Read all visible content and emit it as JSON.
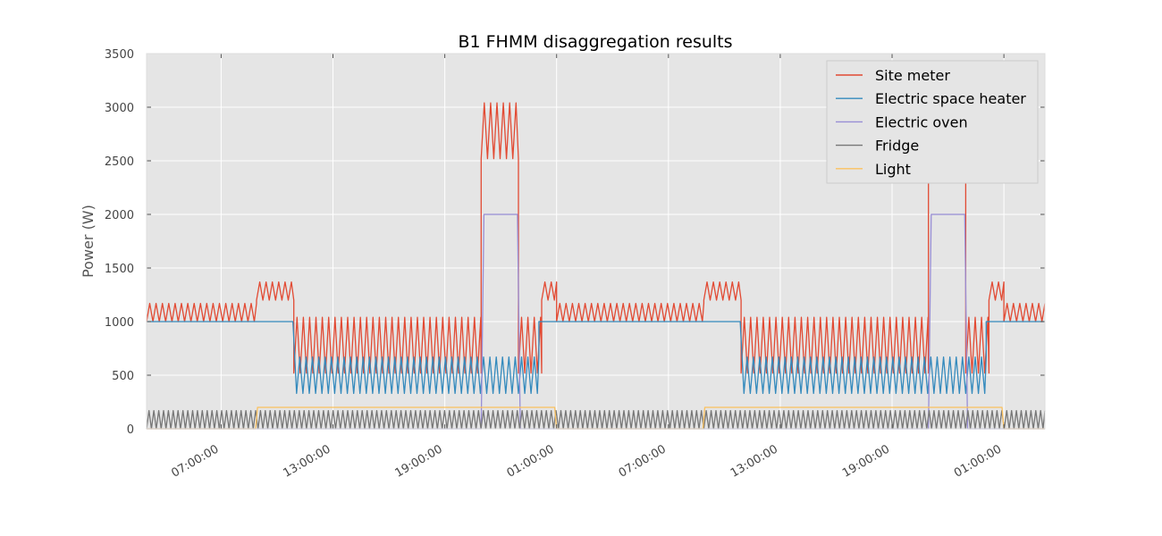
{
  "chart_data": {
    "type": "line",
    "title": "B1 FHMM disaggregation results",
    "xlabel": "",
    "ylabel": "Power (W)",
    "x_unit": "hours",
    "xlim": [
      3,
      51.2
    ],
    "ylim": [
      0,
      3500
    ],
    "y_ticks": [
      0,
      500,
      1000,
      1500,
      2000,
      2500,
      3000,
      3500
    ],
    "x_ticks": [
      {
        "x": 7,
        "label": "07:00:00"
      },
      {
        "x": 13,
        "label": "13:00:00"
      },
      {
        "x": 19,
        "label": "19:00:00"
      },
      {
        "x": 25,
        "label": "01:00:00"
      },
      {
        "x": 31,
        "label": "07:00:00"
      },
      {
        "x": 37,
        "label": "13:00:00"
      },
      {
        "x": 43,
        "label": "19:00:00"
      },
      {
        "x": 49,
        "label": "01:00:00"
      }
    ],
    "grid": true,
    "legend_position": "top-right",
    "background": "#e5e5e5",
    "series": [
      {
        "name": "Site meter",
        "color": "#e24a33",
        "pattern": "oscillating",
        "segments": [
          {
            "x0": 3.0,
            "x1": 8.9,
            "low": 1000,
            "high": 1170,
            "period": 0.34
          },
          {
            "x0": 8.9,
            "x1": 10.9,
            "low": 1200,
            "high": 1370,
            "period": 0.34
          },
          {
            "x0": 10.9,
            "x1": 20.95,
            "low": 520,
            "high": 1040,
            "period": 0.34
          },
          {
            "x0": 20.95,
            "x1": 22.95,
            "low": 2520,
            "high": 3040,
            "period": 0.34
          },
          {
            "x0": 22.95,
            "x1": 24.2,
            "low": 520,
            "high": 1040,
            "period": 0.34
          },
          {
            "x0": 24.2,
            "x1": 25.0,
            "low": 1200,
            "high": 1370,
            "period": 0.34
          },
          {
            "x0": 25.0,
            "x1": 32.9,
            "low": 1000,
            "high": 1170,
            "period": 0.34
          },
          {
            "x0": 32.9,
            "x1": 34.9,
            "low": 1200,
            "high": 1370,
            "period": 0.34
          },
          {
            "x0": 34.9,
            "x1": 44.95,
            "low": 520,
            "high": 1040,
            "period": 0.34
          },
          {
            "x0": 44.95,
            "x1": 46.95,
            "low": 2520,
            "high": 3040,
            "period": 0.34
          },
          {
            "x0": 46.95,
            "x1": 48.2,
            "low": 520,
            "high": 1040,
            "period": 0.34
          },
          {
            "x0": 48.2,
            "x1": 49.0,
            "low": 1200,
            "high": 1370,
            "period": 0.34
          },
          {
            "x0": 49.0,
            "x1": 51.2,
            "low": 1000,
            "high": 1170,
            "period": 0.34
          }
        ]
      },
      {
        "name": "Electric space heater",
        "color": "#348abd",
        "pattern": "oscillating",
        "segments": [
          {
            "x0": 3.0,
            "x1": 10.85,
            "low": 1000,
            "high": 1000,
            "period": 0.34
          },
          {
            "x0": 11.05,
            "x1": 24.05,
            "low": 330,
            "high": 670,
            "period": 0.34
          },
          {
            "x0": 24.05,
            "x1": 34.85,
            "low": 1000,
            "high": 1000,
            "period": 0.34
          },
          {
            "x0": 35.05,
            "x1": 48.05,
            "low": 330,
            "high": 670,
            "period": 0.34
          },
          {
            "x0": 48.05,
            "x1": 51.2,
            "low": 1000,
            "high": 1000,
            "period": 0.34
          }
        ]
      },
      {
        "name": "Electric oven",
        "color": "#988ed5",
        "pattern": "step",
        "points": [
          [
            3.0,
            0
          ],
          [
            20.95,
            0
          ],
          [
            21.1,
            2000
          ],
          [
            22.9,
            2000
          ],
          [
            23.05,
            0
          ],
          [
            44.95,
            0
          ],
          [
            45.1,
            2000
          ],
          [
            46.9,
            2000
          ],
          [
            47.05,
            0
          ],
          [
            51.2,
            0
          ]
        ]
      },
      {
        "name": "Fridge",
        "color": "#777777",
        "pattern": "oscillating",
        "segments": [
          {
            "x0": 3.0,
            "x1": 51.2,
            "low": 0,
            "high": 170,
            "period": 0.26
          }
        ]
      },
      {
        "name": "Light",
        "color": "#fbc15e",
        "pattern": "step",
        "points": [
          [
            3.0,
            0
          ],
          [
            8.85,
            0
          ],
          [
            8.95,
            200
          ],
          [
            24.9,
            200
          ],
          [
            25.0,
            0
          ],
          [
            32.85,
            0
          ],
          [
            32.95,
            200
          ],
          [
            48.9,
            200
          ],
          [
            49.0,
            0
          ],
          [
            51.2,
            0
          ]
        ]
      }
    ]
  }
}
